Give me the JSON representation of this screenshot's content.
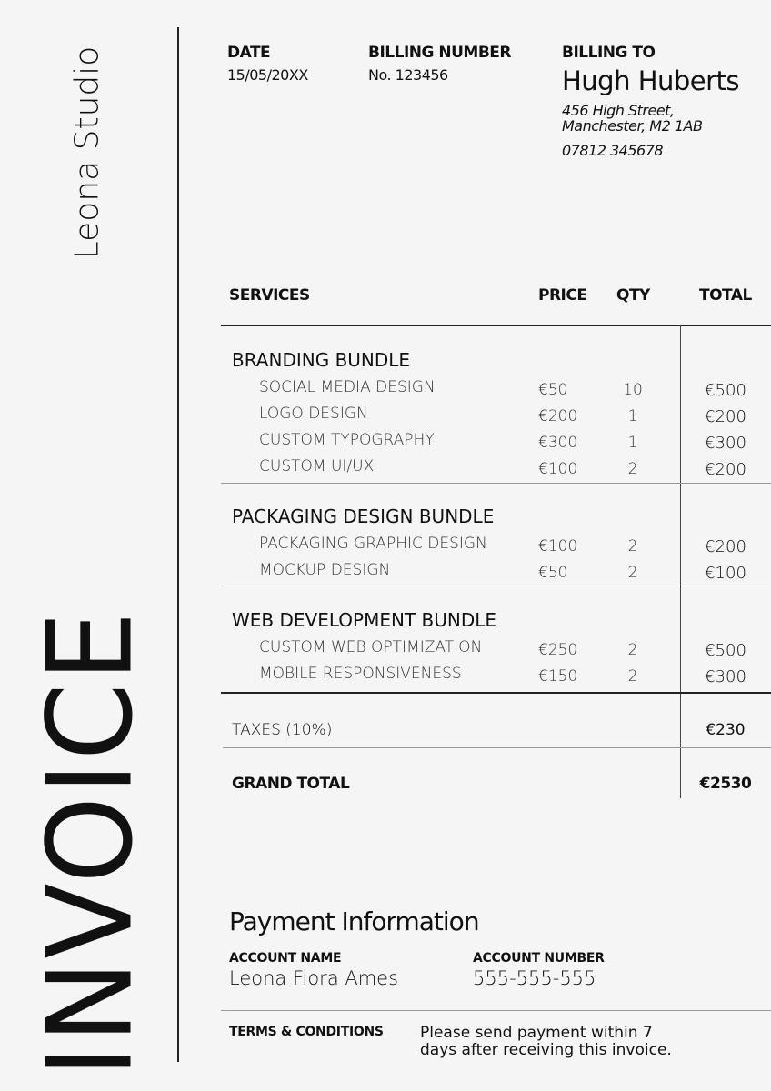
{
  "studio_name": "Leona Studio",
  "doc_title": "INVOICE",
  "header": {
    "date_label": "DATE",
    "date": "15/05/20XX",
    "billing_number_label": "BILLING NUMBER",
    "billing_number": "No. 123456",
    "billing_to_label": "BILLING TO",
    "client_name": "Hugh Huberts",
    "address_line1": "456 High Street,",
    "address_line2": "Manchester, M2 1AB",
    "phone": "07812 345678"
  },
  "table": {
    "columns": [
      "SERVICES",
      "PRICE",
      "QTY",
      "TOTAL"
    ],
    "groups": [
      {
        "title": "BRANDING BUNDLE",
        "items": [
          {
            "name": "SOCIAL MEDIA DESIGN",
            "price": "€50",
            "qty": "10",
            "total": "€500"
          },
          {
            "name": "LOGO DESIGN",
            "price": "€200",
            "qty": "1",
            "total": "€200"
          },
          {
            "name": "CUSTOM TYPOGRAPHY",
            "price": "€300",
            "qty": "1",
            "total": "€300"
          },
          {
            "name": "CUSTOM UI/UX",
            "price": "€100",
            "qty": "2",
            "total": "€200"
          }
        ]
      },
      {
        "title": "PACKAGING DESIGN BUNDLE",
        "items": [
          {
            "name": "PACKAGING GRAPHIC DESIGN",
            "price": "€100",
            "qty": "2",
            "total": "€200"
          },
          {
            "name": "MOCKUP DESIGN",
            "price": "€50",
            "qty": "2",
            "total": "€100"
          }
        ]
      },
      {
        "title": "WEB DEVELOPMENT BUNDLE",
        "items": [
          {
            "name": "CUSTOM WEB OPTIMIZATION",
            "price": "€250",
            "qty": "2",
            "total": "€500"
          },
          {
            "name": "MOBILE RESPONSIVENESS",
            "price": "€150",
            "qty": "2",
            "total": "€300"
          }
        ]
      }
    ],
    "taxes_label": "TAXES (10%)",
    "taxes": "€230",
    "grand_total_label": "GRAND TOTAL",
    "grand_total": "€2530"
  },
  "payment": {
    "heading": "Payment Information",
    "account_name_label": "ACCOUNT NAME",
    "account_name": "Leona Fiora Ames",
    "account_number_label": "ACCOUNT NUMBER",
    "account_number": "555-555-555",
    "terms_label": "TERMS & CONDITIONS",
    "terms_line1": "Please send payment within 7",
    "terms_line2": "days after receiving this invoice."
  }
}
